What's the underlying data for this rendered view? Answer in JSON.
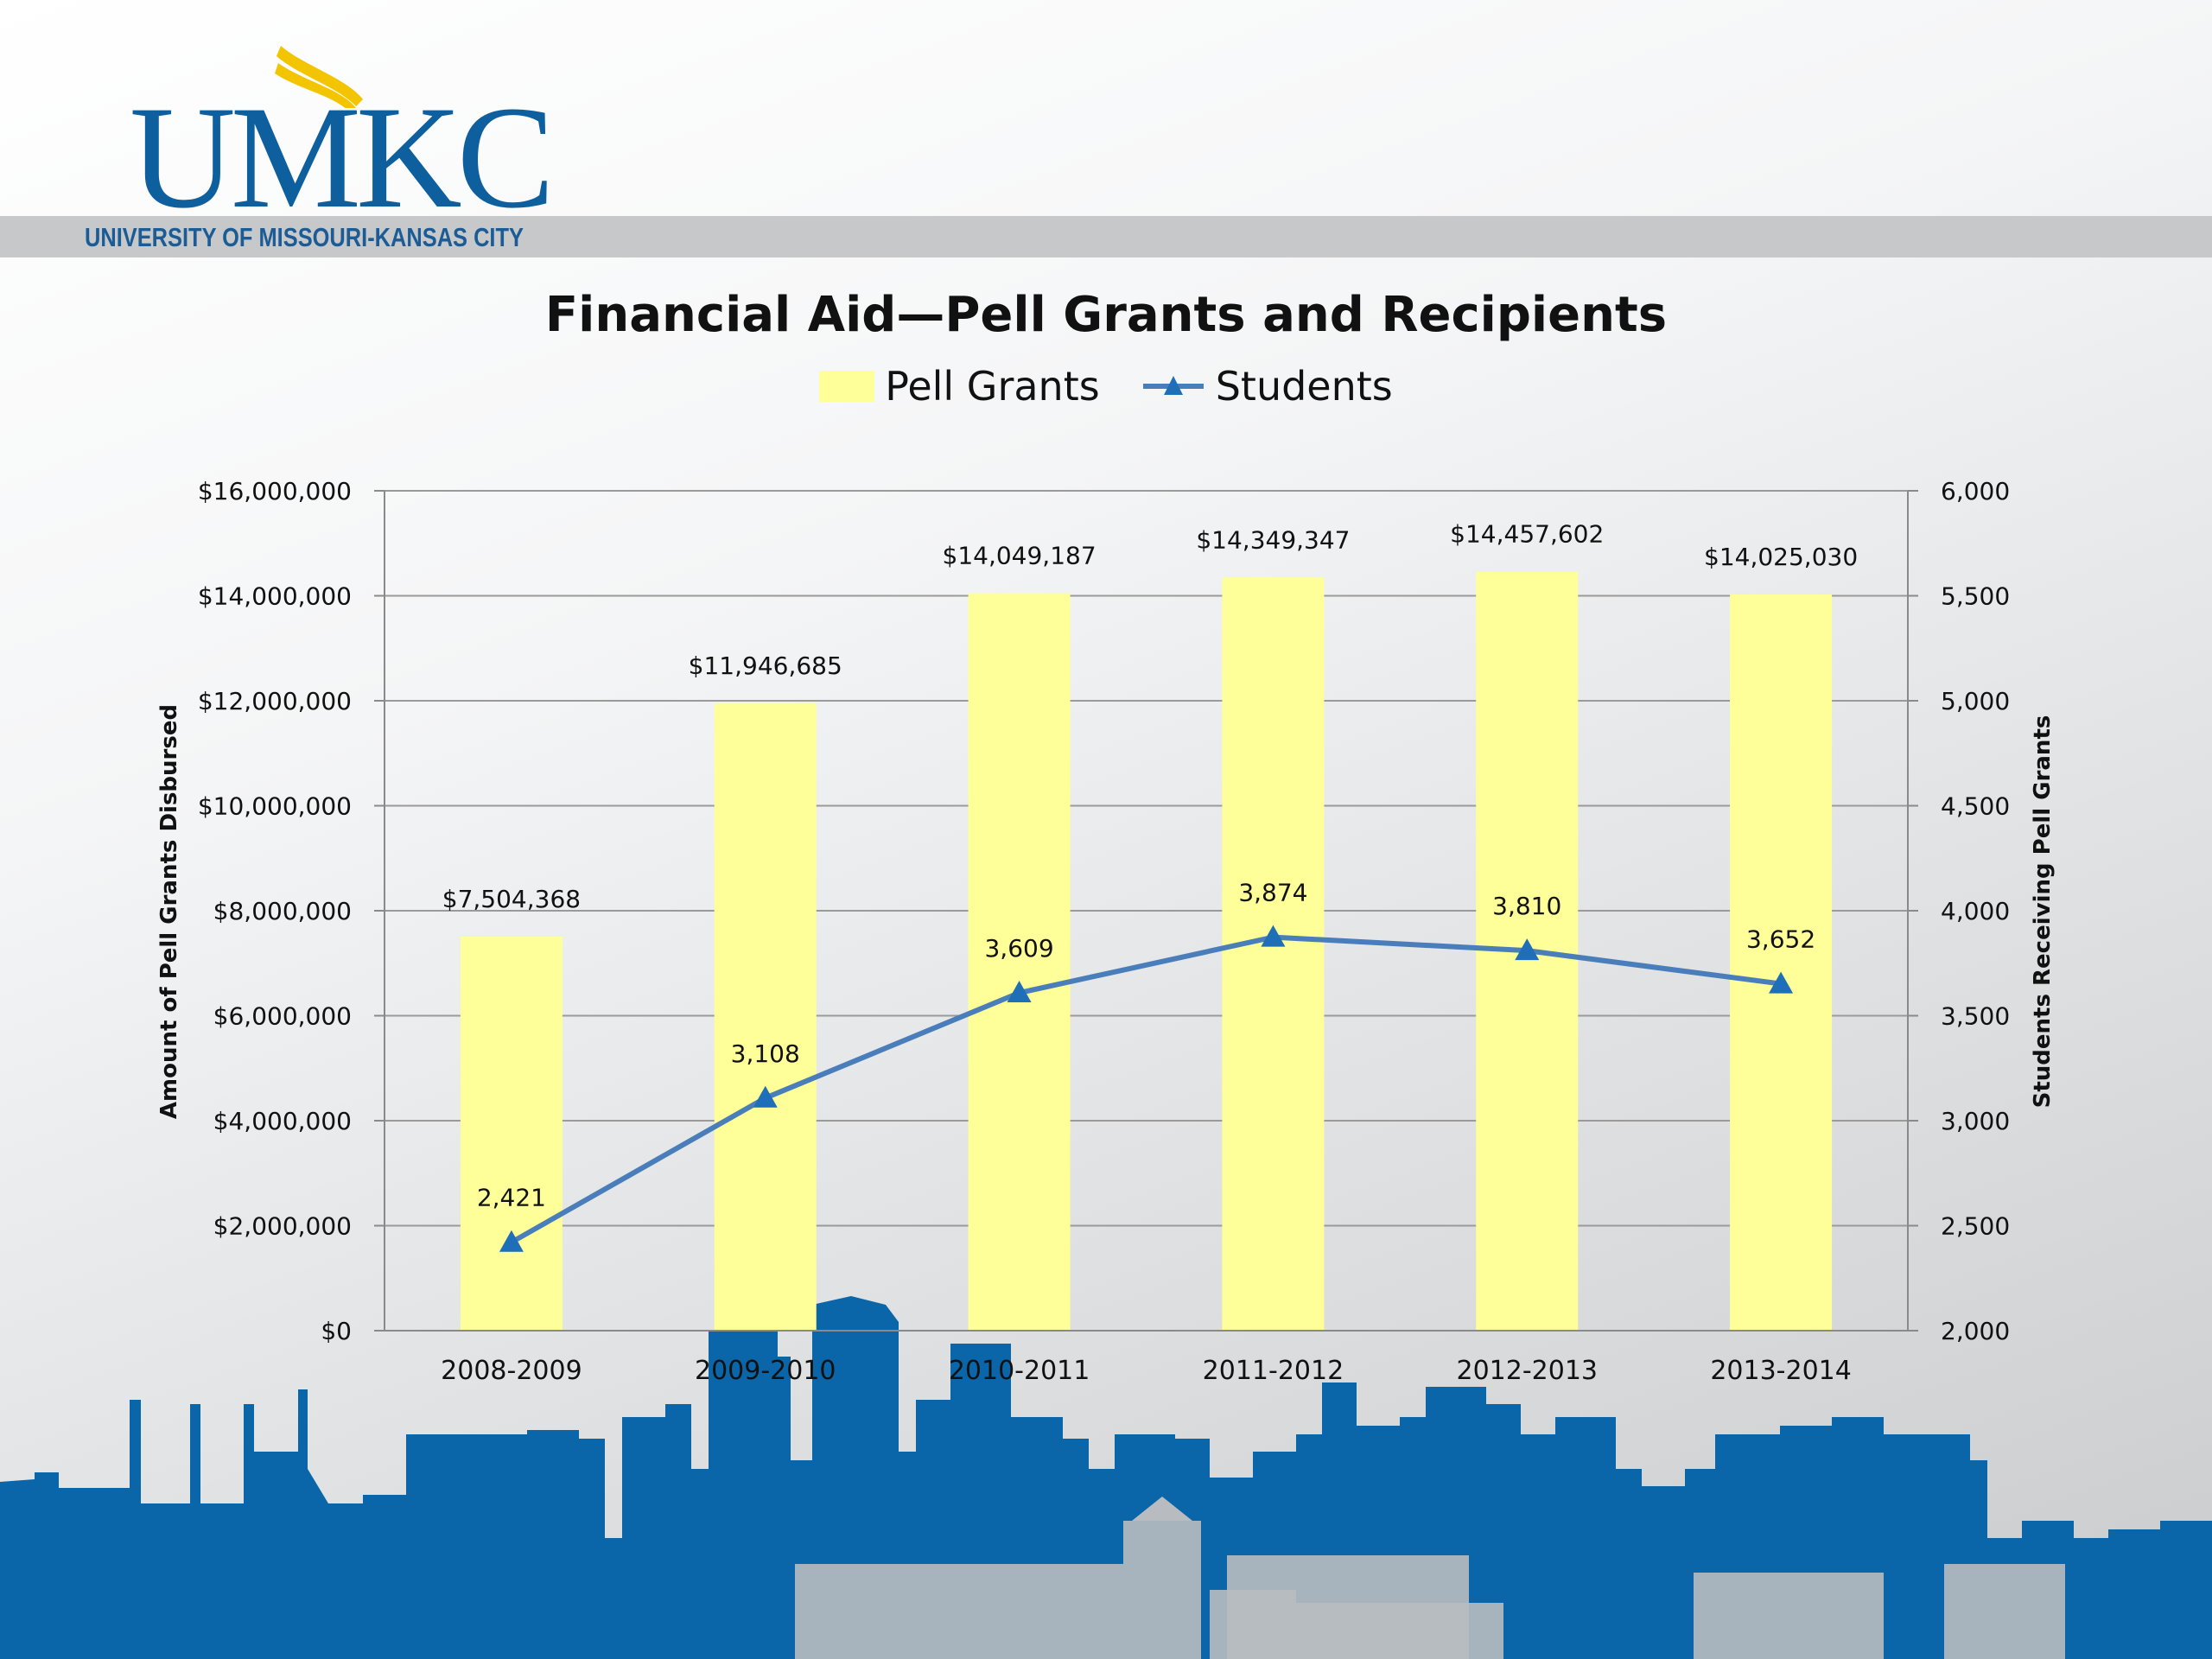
{
  "header": {
    "logo_text": "UMKC",
    "banner_text": "UNIVERSITY OF MISSOURI-KANSAS CITY"
  },
  "colors": {
    "bar": "#ffff99",
    "line": "#4a7ebb",
    "marker": "#1f6fb8",
    "brand_blue": "#0d5f9e",
    "brand_gold": "#f2c500",
    "skyline_blue": "#0a66a8"
  },
  "chart_data": {
    "type": "bar",
    "title": "Financial Aid—Pell Grants and Recipients",
    "categories": [
      "2008-2009",
      "2009-2010",
      "2010-2011",
      "2011-2012",
      "2012-2013",
      "2013-2014"
    ],
    "series": [
      {
        "name": "Pell Grants",
        "type": "bar",
        "axis": "left",
        "values": [
          7504368,
          11946685,
          14049187,
          14349347,
          14457602,
          14025030
        ],
        "labels": [
          "$7,504,368",
          "$11,946,685",
          "$14,049,187",
          "$14,349,347",
          "$14,457,602",
          "$14,025,030"
        ]
      },
      {
        "name": "Students",
        "type": "line",
        "axis": "right",
        "marker": "triangle",
        "values": [
          2421,
          3108,
          3609,
          3874,
          3810,
          3652
        ],
        "labels": [
          "2,421",
          "3,108",
          "3,609",
          "3,874",
          "3,810",
          "3,652"
        ]
      }
    ],
    "ylabel": "Amount of Pell Grants Disbursed",
    "y2label": "Students Receiving Pell Grants",
    "ylim": [
      0,
      16000000
    ],
    "y2lim": [
      2000,
      6000
    ],
    "yticks": [
      "$0",
      "$2,000,000",
      "$4,000,000",
      "$6,000,000",
      "$8,000,000",
      "$10,000,000",
      "$12,000,000",
      "$14,000,000",
      "$16,000,000"
    ],
    "y2ticks": [
      "2,000",
      "2,500",
      "3,000",
      "3,500",
      "4,000",
      "4,500",
      "5,000",
      "5,500",
      "6,000"
    ],
    "grid": true,
    "legend": "top"
  }
}
